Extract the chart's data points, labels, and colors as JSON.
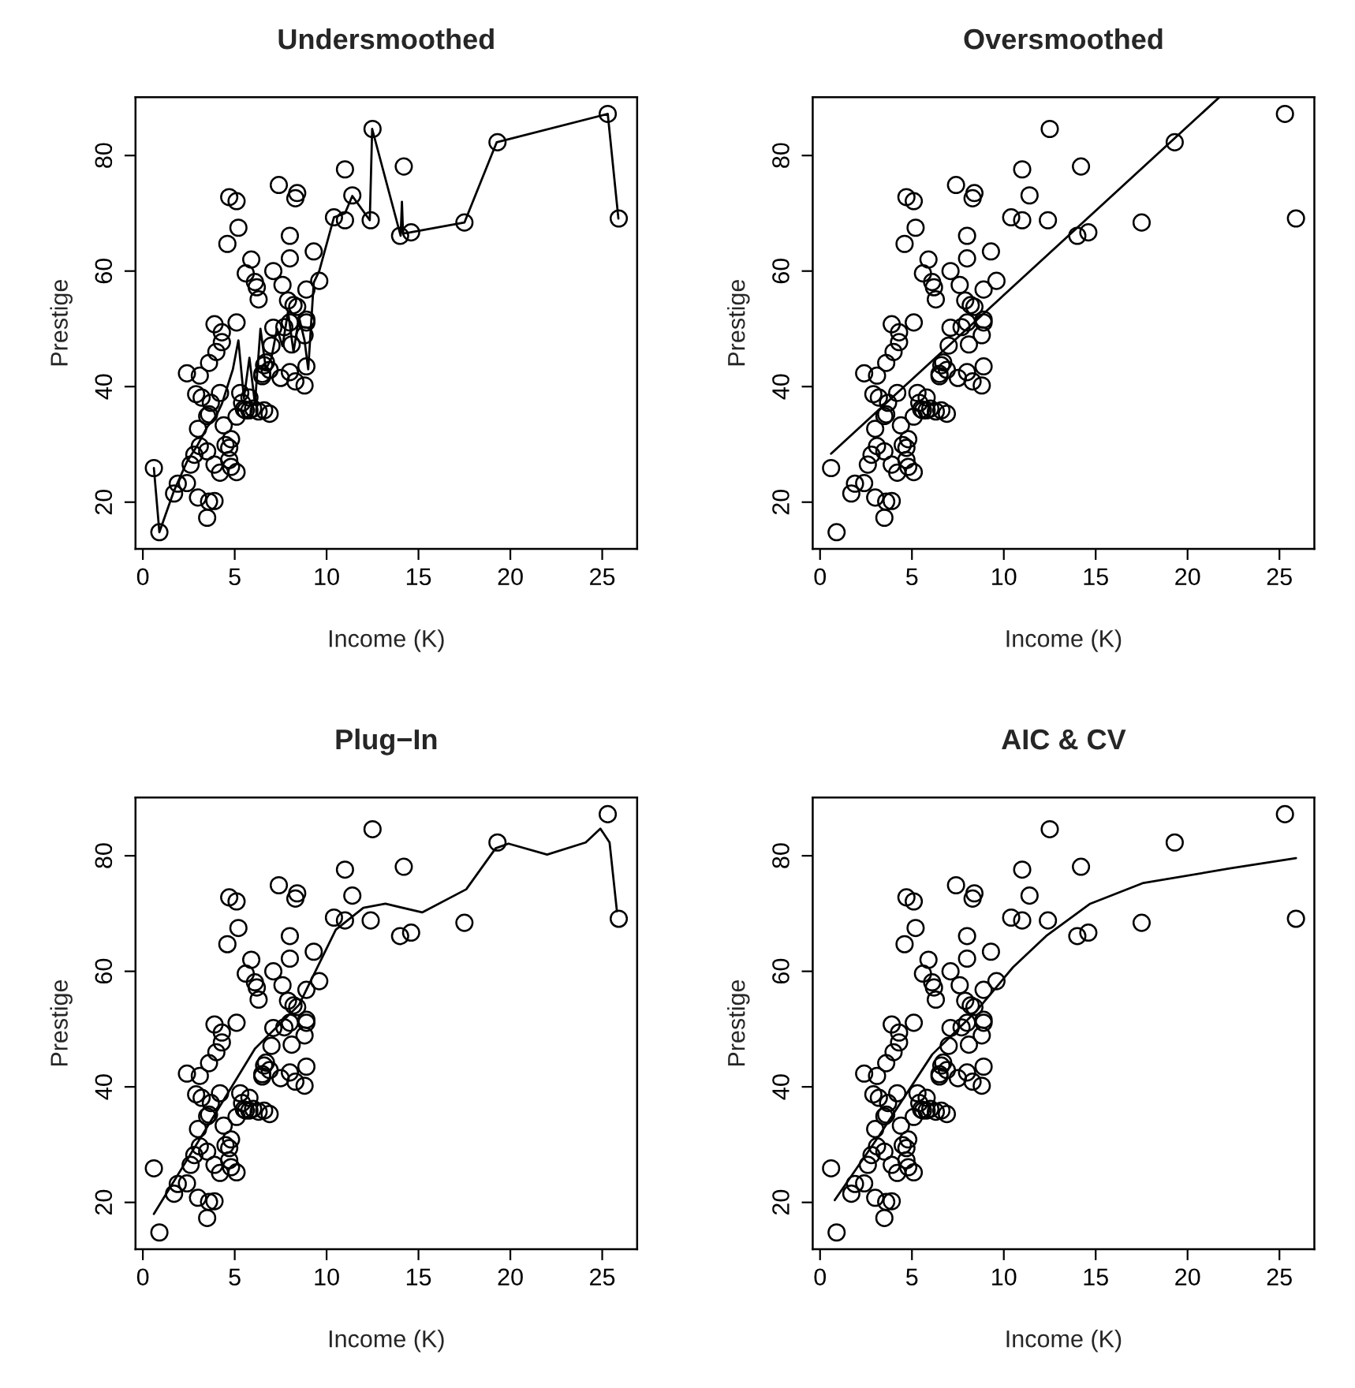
{
  "chart_data": [
    {
      "type": "scatter",
      "title": "Undersmoothed",
      "xlabel": "Income (K)",
      "ylabel": "Prestige",
      "xlim": [
        -0.4,
        26.9
      ],
      "ylim": [
        11.9,
        90.1
      ],
      "xticks": [
        0,
        5,
        10,
        15,
        20,
        25
      ],
      "yticks": [
        20,
        40,
        60,
        80
      ],
      "grid": false,
      "legend": false,
      "series": [
        {
          "type": "scatter",
          "marker": "circle",
          "color": "#000000",
          "x": [
            12.4,
            25.9,
            9.3,
            8.9,
            8.4,
            11.0,
            8.3,
            14.2,
            11.4,
            11.0,
            5.9,
            7.1,
            8.4,
            8.0,
            7.4,
            6.3,
            19.3,
            6.1,
            9.6,
            4.7,
            12.5,
            5.6,
            8.0,
            25.3,
            14.6,
            17.5,
            4.6,
            3.5,
            5.1,
            10.4,
            5.2,
            6.2,
            7.6,
            8.2,
            4.0,
            3.1,
            4.3,
            2.4,
            4.3,
            4.8,
            3.0,
            2.9,
            5.5,
            3.7,
            3.2,
            4.7,
            5.1,
            6.3,
            7.5,
            8.8,
            2.6,
            2.4,
            8.1,
            7.0,
            8.0,
            8.9,
            8.9,
            3.1,
            3.9,
            7.9,
            0.6,
            3.0,
            3.5,
            3.6,
            3.6,
            1.7,
            6.9,
            4.2,
            5.1,
            5.1,
            1.9,
            4.4,
            3.5,
            8.0,
            6.7,
            6.6,
            6.5,
            5.8,
            6.6,
            3.9,
            5.4,
            2.8,
            5.8,
            7.7,
            4.7,
            8.3,
            7.1,
            8.9,
            5.3,
            6.0,
            4.5,
            6.9,
            3.9,
            14.0,
            8.8,
            5.6,
            4.2,
            4.8,
            6.5,
            3.6,
            0.9
          ],
          "values": [
            68.8,
            69.1,
            63.4,
            56.8,
            73.5,
            77.6,
            72.6,
            78.1,
            73.1,
            68.8,
            62.0,
            60.0,
            53.8,
            62.2,
            74.9,
            55.1,
            82.3,
            58.1,
            58.3,
            72.8,
            84.6,
            59.6,
            66.1,
            87.2,
            66.7,
            68.4,
            64.7,
            34.9,
            72.1,
            69.3,
            67.5,
            57.2,
            57.6,
            54.1,
            46.0,
            41.9,
            49.4,
            42.3,
            47.7,
            30.9,
            32.7,
            38.7,
            36.1,
            37.2,
            38.1,
            29.4,
            51.1,
            35.7,
            41.5,
            40.2,
            26.5,
            23.3,
            47.3,
            47.1,
            51.1,
            43.5,
            51.6,
            29.7,
            20.2,
            54.9,
            25.9,
            20.8,
            17.3,
            20.1,
            44.1,
            21.5,
            35.3,
            38.9,
            25.2,
            34.8,
            23.2,
            33.3,
            28.8,
            42.5,
            44.2,
            35.9,
            41.8,
            35.9,
            43.7,
            50.8,
            37.2,
            28.2,
            38.1,
            50.3,
            27.3,
            40.9,
            50.2,
            51.1,
            38.9,
            36.2,
            29.9,
            42.9,
            26.5,
            66.1,
            48.9,
            35.9,
            25.1,
            26.1,
            42.2,
            35.2,
            14.8
          ]
        },
        {
          "type": "line",
          "line_style": "solid",
          "color": "#000000",
          "x": [
            0.6,
            0.9,
            1.7,
            2.4,
            3.0,
            3.5,
            4.0,
            4.3,
            4.6,
            4.9,
            5.2,
            5.5,
            5.8,
            6.1,
            6.4,
            6.7,
            7.0,
            7.3,
            7.6,
            7.9,
            8.2,
            8.5,
            8.8,
            9.0,
            9.3,
            9.6,
            10.4,
            11.0,
            11.4,
            12.35,
            12.48,
            14.03,
            14.1,
            14.16,
            14.56,
            17.5,
            19.26,
            25.3,
            25.88
          ],
          "values": [
            25.9,
            14.8,
            22,
            27,
            30,
            33,
            35,
            37,
            40,
            43,
            48,
            38,
            45,
            37,
            50,
            43,
            45,
            50,
            47,
            53,
            46,
            52,
            48,
            43,
            58,
            60,
            69.3,
            70,
            73,
            68.8,
            84.6,
            66.1,
            72,
            66.5,
            66.7,
            68.4,
            82.3,
            87.2,
            69.1
          ]
        }
      ]
    },
    {
      "type": "scatter",
      "title": "Oversmoothed",
      "xlabel": "Income (K)",
      "ylabel": "Prestige",
      "xlim": [
        -0.4,
        26.9
      ],
      "ylim": [
        11.9,
        90.1
      ],
      "xticks": [
        0,
        5,
        10,
        15,
        20,
        25
      ],
      "yticks": [
        20,
        40,
        60,
        80
      ],
      "grid": false,
      "legend": false,
      "series": [
        {
          "type": "scatter",
          "marker": "circle",
          "color": "#000000",
          "x": [
            12.4,
            25.9,
            9.3,
            8.9,
            8.4,
            11.0,
            8.3,
            14.2,
            11.4,
            11.0,
            5.9,
            7.1,
            8.4,
            8.0,
            7.4,
            6.3,
            19.3,
            6.1,
            9.6,
            4.7,
            12.5,
            5.6,
            8.0,
            25.3,
            14.6,
            17.5,
            4.6,
            3.5,
            5.1,
            10.4,
            5.2,
            6.2,
            7.6,
            8.2,
            4.0,
            3.1,
            4.3,
            2.4,
            4.3,
            4.8,
            3.0,
            2.9,
            5.5,
            3.7,
            3.2,
            4.7,
            5.1,
            6.3,
            7.5,
            8.8,
            2.6,
            2.4,
            8.1,
            7.0,
            8.0,
            8.9,
            8.9,
            3.1,
            3.9,
            7.9,
            0.6,
            3.0,
            3.5,
            3.6,
            3.6,
            1.7,
            6.9,
            4.2,
            5.1,
            5.1,
            1.9,
            4.4,
            3.5,
            8.0,
            6.7,
            6.6,
            6.5,
            5.8,
            6.6,
            3.9,
            5.4,
            2.8,
            5.8,
            7.7,
            4.7,
            8.3,
            7.1,
            8.9,
            5.3,
            6.0,
            4.5,
            6.9,
            3.9,
            14.0,
            8.8,
            5.6,
            4.2,
            4.8,
            6.5,
            3.6,
            0.9
          ],
          "values": [
            68.8,
            69.1,
            63.4,
            56.8,
            73.5,
            77.6,
            72.6,
            78.1,
            73.1,
            68.8,
            62.0,
            60.0,
            53.8,
            62.2,
            74.9,
            55.1,
            82.3,
            58.1,
            58.3,
            72.8,
            84.6,
            59.6,
            66.1,
            87.2,
            66.7,
            68.4,
            64.7,
            34.9,
            72.1,
            69.3,
            67.5,
            57.2,
            57.6,
            54.1,
            46.0,
            41.9,
            49.4,
            42.3,
            47.7,
            30.9,
            32.7,
            38.7,
            36.1,
            37.2,
            38.1,
            29.4,
            51.1,
            35.7,
            41.5,
            40.2,
            26.5,
            23.3,
            47.3,
            47.1,
            51.1,
            43.5,
            51.6,
            29.7,
            20.2,
            54.9,
            25.9,
            20.8,
            17.3,
            20.1,
            44.1,
            21.5,
            35.3,
            38.9,
            25.2,
            34.8,
            23.2,
            33.3,
            28.8,
            42.5,
            44.2,
            35.9,
            41.8,
            35.9,
            43.7,
            50.8,
            37.2,
            28.2,
            38.1,
            50.3,
            27.3,
            40.9,
            50.2,
            51.1,
            38.9,
            36.2,
            29.9,
            42.9,
            26.5,
            66.1,
            48.9,
            35.9,
            25.1,
            26.1,
            42.2,
            35.2,
            14.8
          ]
        },
        {
          "type": "line",
          "line_style": "solid",
          "color": "#000000",
          "x": [
            0.6,
            21.7
          ],
          "values": [
            28.4,
            90.0
          ]
        }
      ]
    },
    {
      "type": "scatter",
      "title": "Plug−In",
      "xlabel": "Income (K)",
      "ylabel": "Prestige",
      "xlim": [
        -0.4,
        26.9
      ],
      "ylim": [
        11.9,
        90.1
      ],
      "xticks": [
        0,
        5,
        10,
        15,
        20,
        25
      ],
      "yticks": [
        20,
        40,
        60,
        80
      ],
      "grid": false,
      "legend": false,
      "series": [
        {
          "type": "scatter",
          "marker": "circle",
          "color": "#000000",
          "x": [
            12.4,
            25.9,
            9.3,
            8.9,
            8.4,
            11.0,
            8.3,
            14.2,
            11.4,
            11.0,
            5.9,
            7.1,
            8.4,
            8.0,
            7.4,
            6.3,
            19.3,
            6.1,
            9.6,
            4.7,
            12.5,
            5.6,
            8.0,
            25.3,
            14.6,
            17.5,
            4.6,
            3.5,
            5.1,
            10.4,
            5.2,
            6.2,
            7.6,
            8.2,
            4.0,
            3.1,
            4.3,
            2.4,
            4.3,
            4.8,
            3.0,
            2.9,
            5.5,
            3.7,
            3.2,
            4.7,
            5.1,
            6.3,
            7.5,
            8.8,
            2.6,
            2.4,
            8.1,
            7.0,
            8.0,
            8.9,
            8.9,
            3.1,
            3.9,
            7.9,
            0.6,
            3.0,
            3.5,
            3.6,
            3.6,
            1.7,
            6.9,
            4.2,
            5.1,
            5.1,
            1.9,
            4.4,
            3.5,
            8.0,
            6.7,
            6.6,
            6.5,
            5.8,
            6.6,
            3.9,
            5.4,
            2.8,
            5.8,
            7.7,
            4.7,
            8.3,
            7.1,
            8.9,
            5.3,
            6.0,
            4.5,
            6.9,
            3.9,
            14.0,
            8.8,
            5.6,
            4.2,
            4.8,
            6.5,
            3.6,
            0.9
          ],
          "values": [
            68.8,
            69.1,
            63.4,
            56.8,
            73.5,
            77.6,
            72.6,
            78.1,
            73.1,
            68.8,
            62.0,
            60.0,
            53.8,
            62.2,
            74.9,
            55.1,
            82.3,
            58.1,
            58.3,
            72.8,
            84.6,
            59.6,
            66.1,
            87.2,
            66.7,
            68.4,
            64.7,
            34.9,
            72.1,
            69.3,
            67.5,
            57.2,
            57.6,
            54.1,
            46.0,
            41.9,
            49.4,
            42.3,
            47.7,
            30.9,
            32.7,
            38.7,
            36.1,
            37.2,
            38.1,
            29.4,
            51.1,
            35.7,
            41.5,
            40.2,
            26.5,
            23.3,
            47.3,
            47.1,
            51.1,
            43.5,
            51.6,
            29.7,
            20.2,
            54.9,
            25.9,
            20.8,
            17.3,
            20.1,
            44.1,
            21.5,
            35.3,
            38.9,
            25.2,
            34.8,
            23.2,
            33.3,
            28.8,
            42.5,
            44.2,
            35.9,
            41.8,
            35.9,
            43.7,
            50.8,
            37.2,
            28.2,
            38.1,
            50.3,
            27.3,
            40.9,
            50.2,
            51.1,
            38.9,
            36.2,
            29.9,
            42.9,
            26.5,
            66.1,
            48.9,
            35.9,
            25.1,
            26.1,
            42.2,
            35.2,
            14.8
          ]
        },
        {
          "type": "line",
          "line_style": "solid",
          "color": "#000000",
          "x": [
            0.6,
            3.2,
            6.1,
            8.5,
            10.5,
            12.0,
            13.2,
            15.2,
            17.6,
            19.2,
            19.9,
            22.0,
            24.1,
            24.9,
            25.4,
            25.8
          ],
          "values": [
            18.0,
            31.5,
            46.6,
            54.2,
            67.2,
            71.0,
            71.7,
            70.2,
            74.2,
            81.3,
            82.1,
            80.2,
            82.3,
            84.7,
            82.3,
            70.4
          ]
        }
      ]
    },
    {
      "type": "scatter",
      "title": "AIC & CV",
      "xlabel": "Income (K)",
      "ylabel": "Prestige",
      "xlim": [
        -0.4,
        26.9
      ],
      "ylim": [
        11.9,
        90.1
      ],
      "xticks": [
        0,
        5,
        10,
        15,
        20,
        25
      ],
      "yticks": [
        20,
        40,
        60,
        80
      ],
      "grid": false,
      "legend": false,
      "series": [
        {
          "type": "scatter",
          "marker": "circle",
          "color": "#000000",
          "x": [
            12.4,
            25.9,
            9.3,
            8.9,
            8.4,
            11.0,
            8.3,
            14.2,
            11.4,
            11.0,
            5.9,
            7.1,
            8.4,
            8.0,
            7.4,
            6.3,
            19.3,
            6.1,
            9.6,
            4.7,
            12.5,
            5.6,
            8.0,
            25.3,
            14.6,
            17.5,
            4.6,
            3.5,
            5.1,
            10.4,
            5.2,
            6.2,
            7.6,
            8.2,
            4.0,
            3.1,
            4.3,
            2.4,
            4.3,
            4.8,
            3.0,
            2.9,
            5.5,
            3.7,
            3.2,
            4.7,
            5.1,
            6.3,
            7.5,
            8.8,
            2.6,
            2.4,
            8.1,
            7.0,
            8.0,
            8.9,
            8.9,
            3.1,
            3.9,
            7.9,
            0.6,
            3.0,
            3.5,
            3.6,
            3.6,
            1.7,
            6.9,
            4.2,
            5.1,
            5.1,
            1.9,
            4.4,
            3.5,
            8.0,
            6.7,
            6.6,
            6.5,
            5.8,
            6.6,
            3.9,
            5.4,
            2.8,
            5.8,
            7.7,
            4.7,
            8.3,
            7.1,
            8.9,
            5.3,
            6.0,
            4.5,
            6.9,
            3.9,
            14.0,
            8.8,
            5.6,
            4.2,
            4.8,
            6.5,
            3.6,
            0.9
          ],
          "values": [
            68.8,
            69.1,
            63.4,
            56.8,
            73.5,
            77.6,
            72.6,
            78.1,
            73.1,
            68.8,
            62.0,
            60.0,
            53.8,
            62.2,
            74.9,
            55.1,
            82.3,
            58.1,
            58.3,
            72.8,
            84.6,
            59.6,
            66.1,
            87.2,
            66.7,
            68.4,
            64.7,
            34.9,
            72.1,
            69.3,
            67.5,
            57.2,
            57.6,
            54.1,
            46.0,
            41.9,
            49.4,
            42.3,
            47.7,
            30.9,
            32.7,
            38.7,
            36.1,
            37.2,
            38.1,
            29.4,
            51.1,
            35.7,
            41.5,
            40.2,
            26.5,
            23.3,
            47.3,
            47.1,
            51.1,
            43.5,
            51.6,
            29.7,
            20.2,
            54.9,
            25.9,
            20.8,
            17.3,
            20.1,
            44.1,
            21.5,
            35.3,
            38.9,
            25.2,
            34.8,
            23.2,
            33.3,
            28.8,
            42.5,
            44.2,
            35.9,
            41.8,
            35.9,
            43.7,
            50.8,
            37.2,
            28.2,
            38.1,
            50.3,
            27.3,
            40.9,
            50.2,
            51.1,
            38.9,
            36.2,
            29.9,
            42.9,
            26.5,
            66.1,
            48.9,
            35.9,
            25.1,
            26.1,
            42.2,
            35.2,
            14.8
          ]
        },
        {
          "type": "line",
          "line_style": "solid",
          "color": "#000000",
          "x": [
            0.8,
            3.2,
            6.1,
            8.5,
            10.5,
            12.3,
            14.7,
            17.6,
            22.3,
            25.9
          ],
          "values": [
            20.4,
            31.5,
            45.6,
            53.1,
            60.7,
            66.1,
            71.7,
            75.3,
            77.8,
            79.6
          ]
        }
      ]
    }
  ]
}
